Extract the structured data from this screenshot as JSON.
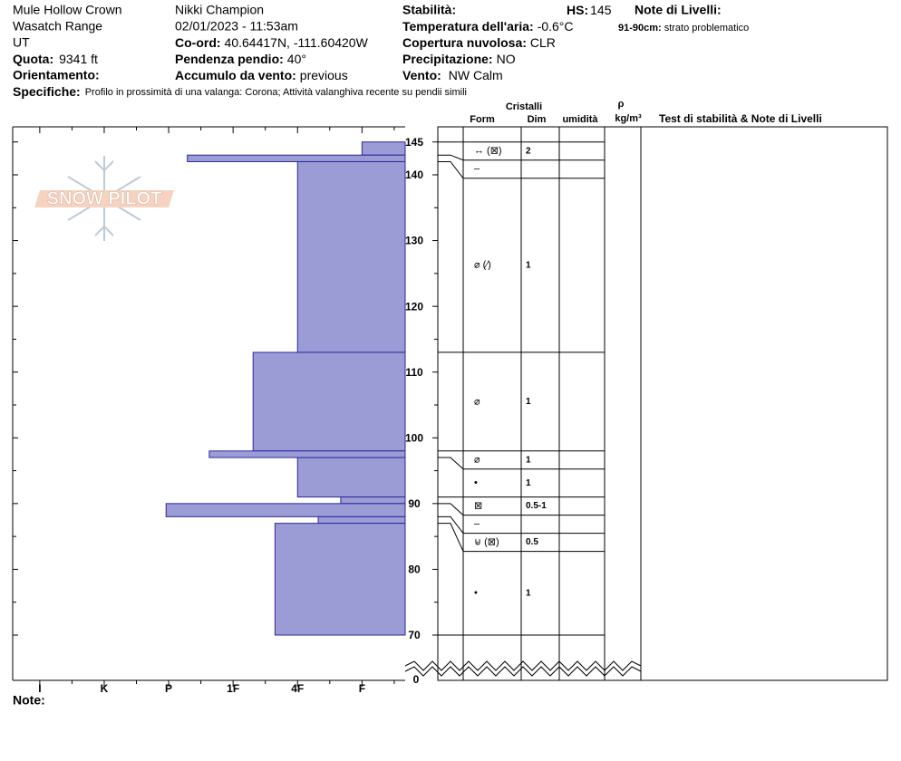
{
  "header": {
    "location": "Mule Hollow Crown",
    "range": "Wasatch Range",
    "state": "UT",
    "elevation": {
      "label": "Quota:",
      "value": "9341 ft"
    },
    "aspect": {
      "label": "Orientamento:"
    },
    "observer": "Nikki Champion",
    "datetime": "02/01/2023 - 11:53am",
    "coords": {
      "label": "Co-ord:",
      "value": "40.64417N, -111.60420W"
    },
    "slope": {
      "label": "Pendenza pendio:",
      "value": "40°"
    },
    "wind_loading": {
      "label": "Accumulo da vento:",
      "value": "previous"
    },
    "stability": {
      "label": "Stabilità:"
    },
    "hs": {
      "label": "HS:",
      "value": "145"
    },
    "air_temp": {
      "label": "Temperatura dell'aria:",
      "value": "-0.6°C"
    },
    "sky": {
      "label": "Copertura nuvolosa:",
      "value": "CLR"
    },
    "precip": {
      "label": "Precipitazione:",
      "value": "NO"
    },
    "wind": {
      "label": "Vento:",
      "value": "NW Calm"
    },
    "layer_notes": {
      "title": "Note di Livelli:",
      "items": [
        {
          "depth": "91-90cm:",
          "text": "strato problematico"
        }
      ]
    },
    "specifics": {
      "label": "Specifiche:",
      "value": "Profilo in prossimità di una valanga: Corona;  Attività valanghiva recente su pendii simili"
    }
  },
  "logo": "SNOW PILOT",
  "columns": {
    "crystals": "Cristalli",
    "form": "Form",
    "size": "Dim",
    "moisture": "umidità",
    "density": "ρ",
    "density_unit": "kg/m³",
    "tests": "Test di stabilità & Note di Livelli"
  },
  "note_label": "Note:",
  "chart_data": {
    "type": "snow-profile",
    "ylim": [
      70,
      147.3
    ],
    "yticks": [
      70,
      80,
      90,
      100,
      110,
      120,
      130,
      140,
      145
    ],
    "ybase": 0,
    "minor_yticks": [
      75,
      85,
      95,
      105,
      115,
      125,
      135
    ],
    "xlim": [
      6.42,
      0.33
    ],
    "xticks": [
      {
        "value": 6,
        "label": "I"
      },
      {
        "value": 5,
        "label": "K"
      },
      {
        "value": 4,
        "label": "P"
      },
      {
        "value": 3,
        "label": "1F"
      },
      {
        "value": 2,
        "label": "4F"
      },
      {
        "value": 1,
        "label": "F"
      }
    ],
    "minor_xticks": [
      5.5,
      4.5,
      3.5,
      2.5,
      1.5,
      0.5
    ],
    "color": "#9b9bd6",
    "layers": [
      {
        "top": 145,
        "bottom": 143,
        "hardness": 1,
        "form": "↔ (⊠)",
        "size": "2"
      },
      {
        "top": 143,
        "bottom": 142,
        "hardness": 3.71,
        "form": "–"
      },
      {
        "top": 142,
        "bottom": 113,
        "hardness": 2,
        "form": "⌀ (⁄)",
        "size": "1"
      },
      {
        "top": 113,
        "bottom": 98,
        "hardness": 2.69,
        "form": "⌀",
        "size": "1"
      },
      {
        "top": 98,
        "bottom": 97,
        "hardness": 3.37,
        "form": "⌀",
        "size": "1"
      },
      {
        "top": 97,
        "bottom": 91,
        "hardness": 2,
        "form": "•",
        "size": "1"
      },
      {
        "top": 91,
        "bottom": 90,
        "hardness": 1.33,
        "form": "⊠",
        "size": "0.5-1"
      },
      {
        "top": 90,
        "bottom": 88,
        "hardness": 4.04,
        "form": "–"
      },
      {
        "top": 88,
        "bottom": 87,
        "hardness": 1.68,
        "form": "⊌ (⊠)",
        "size": "0.5"
      },
      {
        "top": 87,
        "bottom": 70,
        "hardness": 2.35,
        "form": "•",
        "size": "1"
      }
    ]
  }
}
